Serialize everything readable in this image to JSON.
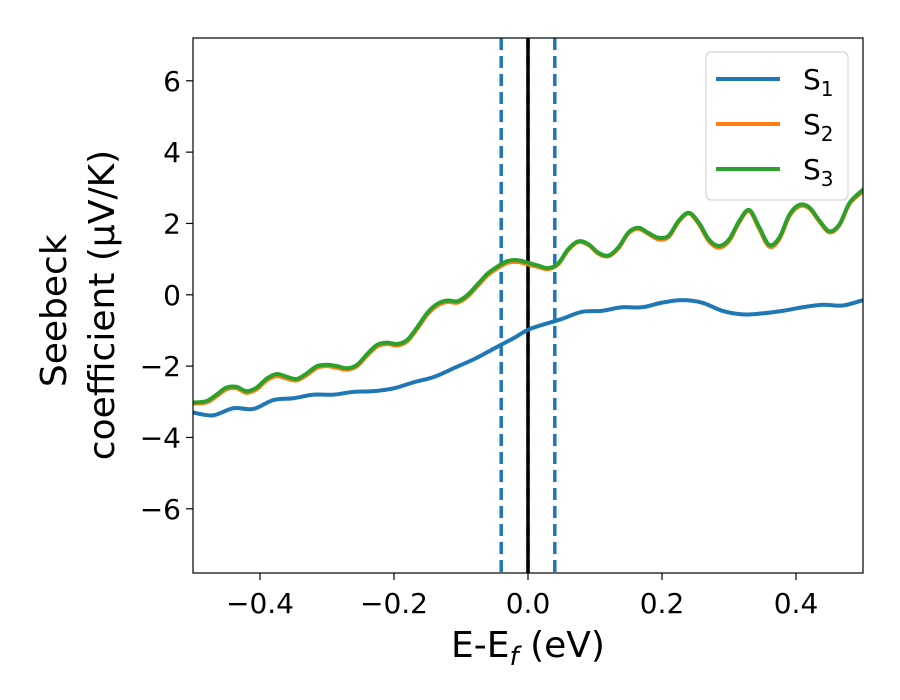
{
  "chart_data": {
    "type": "line",
    "xlabel": "E-E",
    "xlabel_sub": "f",
    "xlabel_unit": " (eV)",
    "ylabel_line1": "Seebeck",
    "ylabel_line2": "coefficient  (μV/K)",
    "xlim": [
      -0.5,
      0.5
    ],
    "ylim": [
      -7.8,
      7.2
    ],
    "xticks": [
      -0.4,
      -0.2,
      0.0,
      0.2,
      0.4
    ],
    "xtick_labels": [
      "−0.4",
      "−0.2",
      "0.0",
      "0.2",
      "0.4"
    ],
    "yticks": [
      -6,
      -4,
      -2,
      0,
      2,
      4,
      6
    ],
    "ytick_labels": [
      "−6",
      "−4",
      "−2",
      "0",
      "2",
      "4",
      "6"
    ],
    "grid": false,
    "legend_position": "top-right",
    "vlines": [
      {
        "x": -0.04,
        "style": "dashed",
        "color": "#1f77b4"
      },
      {
        "x": 0.0,
        "style": "dashed",
        "color": "#1f77b4"
      },
      {
        "x": 0.0,
        "style": "solid",
        "color": "#000000"
      },
      {
        "x": 0.04,
        "style": "dashed",
        "color": "#1f77b4"
      }
    ],
    "series": [
      {
        "name": "S",
        "name_sub": "1",
        "color": "#1f77b4",
        "x": [
          -0.5,
          -0.47,
          -0.44,
          -0.41,
          -0.38,
          -0.35,
          -0.32,
          -0.29,
          -0.26,
          -0.23,
          -0.2,
          -0.17,
          -0.14,
          -0.11,
          -0.08,
          -0.05,
          -0.02,
          0.0,
          0.02,
          0.05,
          0.08,
          0.11,
          0.14,
          0.17,
          0.2,
          0.23,
          0.26,
          0.29,
          0.32,
          0.35,
          0.38,
          0.41,
          0.44,
          0.47,
          0.5
        ],
        "y": [
          -3.3,
          -3.38,
          -3.18,
          -3.2,
          -2.95,
          -2.9,
          -2.8,
          -2.8,
          -2.72,
          -2.7,
          -2.62,
          -2.45,
          -2.3,
          -2.05,
          -1.8,
          -1.5,
          -1.2,
          -0.98,
          -0.85,
          -0.68,
          -0.48,
          -0.45,
          -0.35,
          -0.35,
          -0.22,
          -0.15,
          -0.22,
          -0.45,
          -0.55,
          -0.52,
          -0.45,
          -0.35,
          -0.28,
          -0.3,
          -0.15
        ]
      },
      {
        "name": "S",
        "name_sub": "2",
        "color": "#ff7f0e",
        "x": [
          -0.5,
          -0.48,
          -0.465,
          -0.45,
          -0.435,
          -0.42,
          -0.405,
          -0.39,
          -0.375,
          -0.36,
          -0.345,
          -0.33,
          -0.315,
          -0.3,
          -0.285,
          -0.27,
          -0.255,
          -0.24,
          -0.225,
          -0.21,
          -0.195,
          -0.18,
          -0.165,
          -0.15,
          -0.135,
          -0.12,
          -0.105,
          -0.09,
          -0.075,
          -0.06,
          -0.045,
          -0.03,
          -0.015,
          0.0,
          0.015,
          0.03,
          0.045,
          0.06,
          0.075,
          0.09,
          0.105,
          0.12,
          0.135,
          0.15,
          0.165,
          0.18,
          0.195,
          0.21,
          0.225,
          0.24,
          0.255,
          0.27,
          0.285,
          0.3,
          0.315,
          0.33,
          0.345,
          0.36,
          0.375,
          0.39,
          0.405,
          0.42,
          0.435,
          0.45,
          0.465,
          0.48,
          0.5
        ],
        "y": [
          -3.05,
          -3.02,
          -2.85,
          -2.65,
          -2.62,
          -2.75,
          -2.65,
          -2.4,
          -2.28,
          -2.35,
          -2.4,
          -2.25,
          -2.05,
          -2.0,
          -2.05,
          -2.1,
          -2.0,
          -1.7,
          -1.45,
          -1.38,
          -1.42,
          -1.3,
          -0.95,
          -0.55,
          -0.3,
          -0.2,
          -0.22,
          -0.05,
          0.25,
          0.55,
          0.75,
          0.9,
          0.92,
          0.85,
          0.78,
          0.72,
          0.85,
          1.25,
          1.48,
          1.4,
          1.15,
          1.08,
          1.3,
          1.72,
          1.85,
          1.7,
          1.55,
          1.62,
          2.05,
          2.28,
          1.98,
          1.5,
          1.32,
          1.5,
          2.02,
          2.35,
          1.85,
          1.35,
          1.55,
          2.2,
          2.48,
          2.42,
          2.05,
          1.75,
          1.95,
          2.55,
          2.9
        ]
      },
      {
        "name": "S",
        "name_sub": "3",
        "color": "#2ca02c",
        "x": [
          -0.5,
          -0.48,
          -0.465,
          -0.45,
          -0.435,
          -0.42,
          -0.405,
          -0.39,
          -0.375,
          -0.36,
          -0.345,
          -0.33,
          -0.315,
          -0.3,
          -0.285,
          -0.27,
          -0.255,
          -0.24,
          -0.225,
          -0.21,
          -0.195,
          -0.18,
          -0.165,
          -0.15,
          -0.135,
          -0.12,
          -0.105,
          -0.09,
          -0.075,
          -0.06,
          -0.045,
          -0.03,
          -0.015,
          0.0,
          0.015,
          0.03,
          0.045,
          0.06,
          0.075,
          0.09,
          0.105,
          0.12,
          0.135,
          0.15,
          0.165,
          0.18,
          0.195,
          0.21,
          0.225,
          0.24,
          0.255,
          0.27,
          0.285,
          0.3,
          0.315,
          0.33,
          0.345,
          0.36,
          0.375,
          0.39,
          0.405,
          0.42,
          0.435,
          0.45,
          0.465,
          0.48,
          0.5
        ],
        "y": [
          -3.02,
          -2.98,
          -2.8,
          -2.6,
          -2.58,
          -2.7,
          -2.6,
          -2.35,
          -2.22,
          -2.3,
          -2.36,
          -2.2,
          -2.0,
          -1.96,
          -2.0,
          -2.06,
          -1.96,
          -1.66,
          -1.4,
          -1.34,
          -1.38,
          -1.26,
          -0.9,
          -0.5,
          -0.25,
          -0.16,
          -0.18,
          0.0,
          0.3,
          0.6,
          0.8,
          0.95,
          0.97,
          0.9,
          0.82,
          0.75,
          0.88,
          1.28,
          1.5,
          1.42,
          1.18,
          1.1,
          1.33,
          1.75,
          1.88,
          1.73,
          1.6,
          1.66,
          2.08,
          2.3,
          2.02,
          1.55,
          1.37,
          1.55,
          2.06,
          2.38,
          1.9,
          1.4,
          1.6,
          2.24,
          2.52,
          2.45,
          2.08,
          1.78,
          1.98,
          2.58,
          2.95
        ]
      }
    ]
  }
}
